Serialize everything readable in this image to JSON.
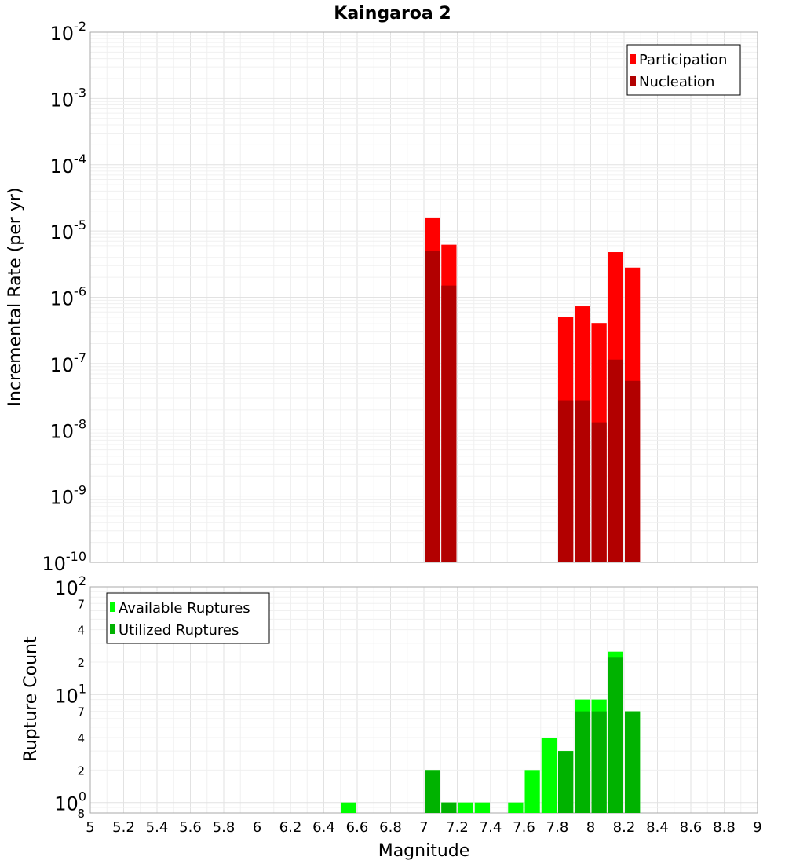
{
  "title": "Kaingaroa 2",
  "colors": {
    "participation": "#ff0000",
    "nucleation": "#b20000",
    "available": "#00ff00",
    "utilized": "#00b200",
    "grid_major": "#e2e2e2",
    "grid_minor": "#f0f0f0",
    "frame": "#aaaaaa"
  },
  "chart_data": [
    {
      "type": "bar",
      "title": "Kaingaroa 2",
      "ylabel": "Incremental Rate (per yr)",
      "xlabel": "",
      "yscale": "log",
      "ylim": [
        1e-10,
        0.01
      ],
      "xlim": [
        5,
        9
      ],
      "bar_width": 0.1,
      "grid": true,
      "legend_position": "top-right",
      "y_ticks": [
        {
          "base": "10",
          "exp": "-2",
          "value": 0.01
        },
        {
          "base": "10",
          "exp": "-3",
          "value": 0.001
        },
        {
          "base": "10",
          "exp": "-4",
          "value": 0.0001
        },
        {
          "base": "10",
          "exp": "-5",
          "value": 1e-05
        },
        {
          "base": "10",
          "exp": "-6",
          "value": 1e-06
        },
        {
          "base": "10",
          "exp": "-7",
          "value": 1e-07
        },
        {
          "base": "10",
          "exp": "-8",
          "value": 1e-08
        },
        {
          "base": "10",
          "exp": "-9",
          "value": 1e-09
        },
        {
          "base": "10",
          "exp": "-10",
          "value": 1e-10
        }
      ],
      "series": [
        {
          "name": "Participation",
          "x": [
            7.05,
            7.15,
            7.85,
            7.95,
            8.05,
            8.15,
            8.25
          ],
          "values": [
            1.6e-05,
            6.2e-06,
            5e-07,
            7.3e-07,
            4.1e-07,
            4.8e-06,
            2.8e-06
          ]
        },
        {
          "name": "Nucleation",
          "x": [
            7.05,
            7.15,
            7.85,
            7.95,
            8.05,
            8.15,
            8.25
          ],
          "values": [
            5e-06,
            1.5e-06,
            2.8e-08,
            2.8e-08,
            1.3e-08,
            1.15e-07,
            5.5e-08
          ]
        }
      ]
    },
    {
      "type": "bar",
      "title": "",
      "ylabel": "Rupture Count",
      "xlabel": "Magnitude",
      "yscale": "log",
      "ylim": [
        0.8,
        100
      ],
      "xlim": [
        5,
        9
      ],
      "bar_width": 0.1,
      "grid": true,
      "legend_position": "top-left",
      "x_ticks": [
        "5",
        "5.2",
        "5.4",
        "5.6",
        "5.8",
        "6",
        "6.2",
        "6.4",
        "6.6",
        "6.8",
        "7",
        "7.2",
        "7.4",
        "7.6",
        "7.8",
        "8",
        "8.2",
        "8.4",
        "8.6",
        "8.8",
        "9"
      ],
      "y_major_ticks": [
        {
          "base": "10",
          "exp": "2",
          "value": 100
        },
        {
          "base": "10",
          "exp": "1",
          "value": 10
        },
        {
          "base": "10",
          "exp": "0",
          "value": 1
        }
      ],
      "y_minor_ticks": [
        {
          "label": "7",
          "value": 70
        },
        {
          "label": "4",
          "value": 40
        },
        {
          "label": "2",
          "value": 20
        },
        {
          "label": "7",
          "value": 7
        },
        {
          "label": "4",
          "value": 4
        },
        {
          "label": "2",
          "value": 2
        },
        {
          "label": "8",
          "value": 0.8
        }
      ],
      "series": [
        {
          "name": "Available Ruptures",
          "x": [
            6.55,
            7.05,
            7.15,
            7.25,
            7.35,
            7.55,
            7.65,
            7.75,
            7.85,
            7.95,
            8.05,
            8.15,
            8.25
          ],
          "values": [
            1,
            2,
            1,
            1,
            1,
            1,
            2,
            4,
            3,
            9,
            9,
            25,
            7
          ]
        },
        {
          "name": "Utilized Ruptures",
          "x": [
            7.05,
            7.15,
            7.85,
            7.95,
            8.05,
            8.15,
            8.25
          ],
          "values": [
            2,
            1,
            3,
            7,
            7,
            22,
            7
          ]
        }
      ]
    }
  ]
}
